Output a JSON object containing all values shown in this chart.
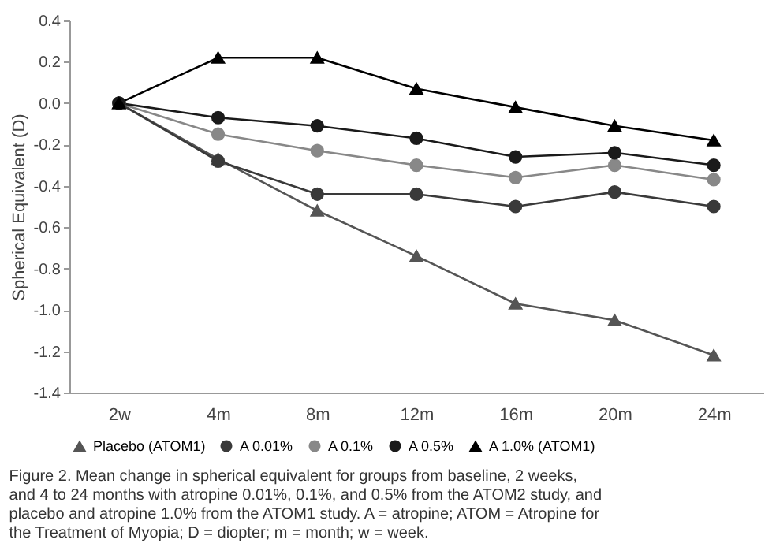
{
  "chart_data": {
    "type": "line",
    "categories": [
      "2w",
      "4m",
      "8m",
      "12m",
      "16m",
      "20m",
      "24m"
    ],
    "ylabel": "Spherical Equivalent (D)",
    "ylim": [
      -1.4,
      0.4
    ],
    "yticks": [
      0.4,
      0.2,
      {
        "value": 0,
        "label": "0.0"
      },
      -0.2,
      -0.4,
      -0.6,
      -0.8,
      {
        "value": -1,
        "label": "-1.0"
      },
      -1.2,
      -1.4
    ],
    "grid": false,
    "legend": "bottom",
    "series": [
      {
        "name": "Placebo (ATOM1)",
        "color": "#555555",
        "marker": "triangle",
        "values": [
          0,
          -0.27,
          -0.52,
          -0.74,
          -0.97,
          -1.05,
          -1.22
        ]
      },
      {
        "name": "A 0.01%",
        "color": "#3a3a3a",
        "marker": "circle",
        "values": [
          0,
          -0.28,
          -0.44,
          -0.44,
          -0.5,
          -0.43,
          -0.5
        ]
      },
      {
        "name": "A 0.1%",
        "color": "#888888",
        "marker": "circle",
        "values": [
          0,
          -0.15,
          -0.23,
          -0.3,
          -0.36,
          -0.3,
          -0.37
        ]
      },
      {
        "name": "A 0.5%",
        "color": "#1a1a1a",
        "marker": "circle",
        "values": [
          0,
          -0.07,
          -0.11,
          -0.17,
          -0.26,
          -0.24,
          -0.3
        ]
      },
      {
        "name": "A 1.0% (ATOM1)",
        "color": "#000000",
        "marker": "triangle",
        "values": [
          0,
          0.22,
          0.22,
          0.07,
          -0.02,
          -0.11,
          -0.18
        ]
      }
    ],
    "annotations": [
      "Figure 2. Mean change in spherical equivalent for groups from baseline, 2 weeks, and 4 to 24 months with atropine 0.01%, 0.1%, and 0.5% from the ATOM2 study, and placebo and atropine 1.0% from the ATOM1 study. A = atropine; ATOM = Atropine for the Treatment of Myopia; D = diopter; m = month; w = week."
    ]
  }
}
